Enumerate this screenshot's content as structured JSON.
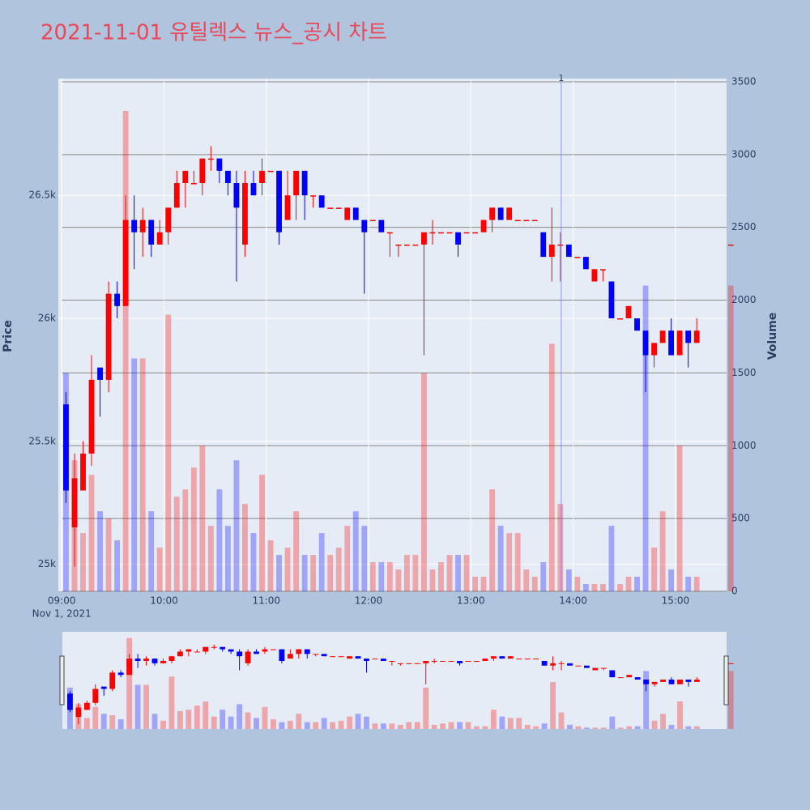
{
  "chart_data": {
    "type": "candlestick",
    "title": "2021-11-01 유틸렉스 뉴스_공시 차트",
    "x": [
      "2021-11-01 09:00",
      "2021-11-01 09:05",
      "2021-11-01 09:10",
      "2021-11-01 09:15",
      "2021-11-01 09:20",
      "2021-11-01 09:25",
      "2021-11-01 09:30",
      "2021-11-01 09:35",
      "2021-11-01 09:40",
      "2021-11-01 09:45",
      "2021-11-01 09:50",
      "2021-11-01 09:55",
      "2021-11-01 10:00",
      "2021-11-01 10:05",
      "2021-11-01 10:10",
      "2021-11-01 10:15",
      "2021-11-01 10:20",
      "2021-11-01 10:25",
      "2021-11-01 10:30",
      "2021-11-01 10:35",
      "2021-11-01 10:40",
      "2021-11-01 10:45",
      "2021-11-01 10:50",
      "2021-11-01 10:55",
      "2021-11-01 11:00",
      "2021-11-01 11:05",
      "2021-11-01 11:10",
      "2021-11-01 11:15",
      "2021-11-01 11:20",
      "2021-11-01 11:25",
      "2021-11-01 11:30",
      "2021-11-01 11:35",
      "2021-11-01 11:40",
      "2021-11-01 11:45",
      "2021-11-01 11:50",
      "2021-11-01 11:55",
      "2021-11-01 12:00",
      "2021-11-01 12:05",
      "2021-11-01 12:10",
      "2021-11-01 12:15",
      "2021-11-01 12:20",
      "2021-11-01 12:25",
      "2021-11-01 12:30",
      "2021-11-01 12:35",
      "2021-11-01 12:40",
      "2021-11-01 12:45",
      "2021-11-01 12:50",
      "2021-11-01 12:55",
      "2021-11-01 13:00",
      "2021-11-01 13:05",
      "2021-11-01 13:10",
      "2021-11-01 13:15",
      "2021-11-01 13:20",
      "2021-11-01 13:25",
      "2021-11-01 13:30",
      "2021-11-01 13:35",
      "2021-11-01 13:40",
      "2021-11-01 13:45",
      "2021-11-01 13:50",
      "2021-11-01 13:55",
      "2021-11-01 14:00",
      "2021-11-01 14:05",
      "2021-11-01 14:10",
      "2021-11-01 14:15",
      "2021-11-01 14:20",
      "2021-11-01 14:25",
      "2021-11-01 14:30",
      "2021-11-01 14:35",
      "2021-11-01 14:40",
      "2021-11-01 14:45",
      "2021-11-01 14:50",
      "2021-11-01 14:55",
      "2021-11-01 15:00",
      "2021-11-01 15:05",
      "2021-11-01 15:10",
      "2021-11-01 15:30"
    ],
    "open": [
      25650,
      25150,
      25300,
      25450,
      25800,
      25750,
      26100,
      26050,
      26400,
      26350,
      26400,
      26300,
      26350,
      26450,
      26550,
      26550,
      26550,
      26650,
      26650,
      26600,
      26550,
      26300,
      26550,
      26550,
      26600,
      26600,
      26400,
      26500,
      26600,
      26500,
      26500,
      26450,
      26450,
      26400,
      26450,
      26400,
      26400,
      26400,
      26350,
      26300,
      26300,
      26300,
      26300,
      26350,
      26350,
      26350,
      26350,
      26350,
      26350,
      26350,
      26400,
      26450,
      26400,
      26400,
      26400,
      26400,
      26350,
      26250,
      26300,
      26300,
      26250,
      26250,
      26150,
      26200,
      26150,
      26000,
      26000,
      26000,
      25950,
      25850,
      25900,
      25950,
      25850,
      25950,
      25900,
      26300
    ],
    "high": [
      25700,
      25450,
      25500,
      25850,
      25800,
      26150,
      26150,
      26500,
      26500,
      26450,
      26400,
      26400,
      26450,
      26600,
      26600,
      26600,
      26650,
      26700,
      26650,
      26600,
      26600,
      26600,
      26600,
      26650,
      26600,
      26600,
      26600,
      26600,
      26600,
      26500,
      26500,
      26450,
      26450,
      26450,
      26450,
      26400,
      26400,
      26400,
      26350,
      26300,
      26300,
      26300,
      26350,
      26400,
      26350,
      26350,
      26350,
      26350,
      26350,
      26400,
      26450,
      26450,
      26450,
      26400,
      26400,
      26400,
      26350,
      26450,
      26350,
      26300,
      26250,
      26250,
      26200,
      26200,
      26150,
      26000,
      26050,
      26000,
      25950,
      25900,
      25950,
      26000,
      25950,
      25950,
      26000,
      26300
    ],
    "low": [
      25250,
      24990,
      25300,
      25400,
      25600,
      25700,
      26000,
      26050,
      26200,
      26250,
      26250,
      26300,
      26300,
      26450,
      26450,
      26550,
      26500,
      26600,
      26550,
      26500,
      26150,
      26250,
      26500,
      26500,
      26600,
      26300,
      26400,
      26400,
      26400,
      26450,
      26450,
      26450,
      26450,
      26400,
      26400,
      26100,
      26400,
      26350,
      26250,
      26250,
      26300,
      26300,
      25850,
      26300,
      26350,
      26350,
      26250,
      26350,
      26350,
      26350,
      26350,
      26400,
      26400,
      26400,
      26400,
      26400,
      26250,
      26150,
      26150,
      26250,
      26250,
      26200,
      26150,
      26150,
      26000,
      26000,
      26000,
      25950,
      25700,
      25800,
      25900,
      25850,
      25850,
      25800,
      25900,
      26300
    ],
    "close": [
      25300,
      25350,
      25450,
      25750,
      25750,
      26100,
      26050,
      26400,
      26350,
      26400,
      26300,
      26350,
      26450,
      26550,
      26600,
      26550,
      26650,
      26650,
      26600,
      26550,
      26450,
      26550,
      26500,
      26600,
      26600,
      26350,
      26500,
      26600,
      26500,
      26500,
      26450,
      26450,
      26450,
      26450,
      26400,
      26350,
      26400,
      26350,
      26350,
      26300,
      26300,
      26300,
      26350,
      26350,
      26350,
      26350,
      26300,
      26350,
      26350,
      26400,
      26450,
      26400,
      26450,
      26400,
      26400,
      26400,
      26250,
      26300,
      26300,
      26250,
      26250,
      26200,
      26200,
      26200,
      26000,
      26000,
      26050,
      25950,
      25850,
      25900,
      25950,
      25850,
      25950,
      25900,
      25950,
      26300
    ],
    "volume": [
      1500,
      900,
      400,
      800,
      550,
      500,
      350,
      3300,
      1600,
      1600,
      550,
      300,
      1900,
      650,
      700,
      850,
      1000,
      450,
      700,
      450,
      900,
      600,
      400,
      800,
      350,
      250,
      300,
      550,
      250,
      250,
      400,
      250,
      300,
      450,
      550,
      450,
      200,
      200,
      200,
      150,
      250,
      250,
      1500,
      150,
      200,
      250,
      250,
      250,
      100,
      100,
      700,
      450,
      400,
      400,
      150,
      100,
      200,
      1700,
      600,
      150,
      100,
      50,
      50,
      50,
      450,
      50,
      100,
      100,
      2100,
      300,
      550,
      150,
      1000,
      100,
      100,
      2100
    ],
    "increasing_color": "#ff0000",
    "decreasing_color": "#0000ff",
    "xlim": [
      "2021-11-01 08:58",
      "2021-11-01 15:30"
    ],
    "xticks": [
      {
        "value": "2021-11-01 09:00",
        "label": "09:00"
      },
      {
        "value": "2021-11-01 10:00",
        "label": "10:00"
      },
      {
        "value": "2021-11-01 11:00",
        "label": "11:00"
      },
      {
        "value": "2021-11-01 12:00",
        "label": "12:00"
      },
      {
        "value": "2021-11-01 13:00",
        "label": "13:00"
      },
      {
        "value": "2021-11-01 14:00",
        "label": "14:00"
      },
      {
        "value": "2021-11-01 15:00",
        "label": "15:00"
      }
    ],
    "x_date_label": "Nov 1, 2021",
    "ylim": [
      24890,
      26975
    ],
    "yticks": [
      {
        "value": 25000,
        "label": "25k"
      },
      {
        "value": 25500,
        "label": "25.5k"
      },
      {
        "value": 26000,
        "label": "26k"
      },
      {
        "value": 26500,
        "label": "26.5k"
      }
    ],
    "y2lim": [
      0,
      3522
    ],
    "y2ticks": [
      0,
      500,
      1000,
      1500,
      2000,
      2500,
      3000,
      3500
    ],
    "ylabel": "Price",
    "y2label": "Volume",
    "grid": true,
    "rangeslider": true,
    "annotations": [
      {
        "text": "1",
        "x": "2021-11-01 13:53"
      }
    ]
  }
}
